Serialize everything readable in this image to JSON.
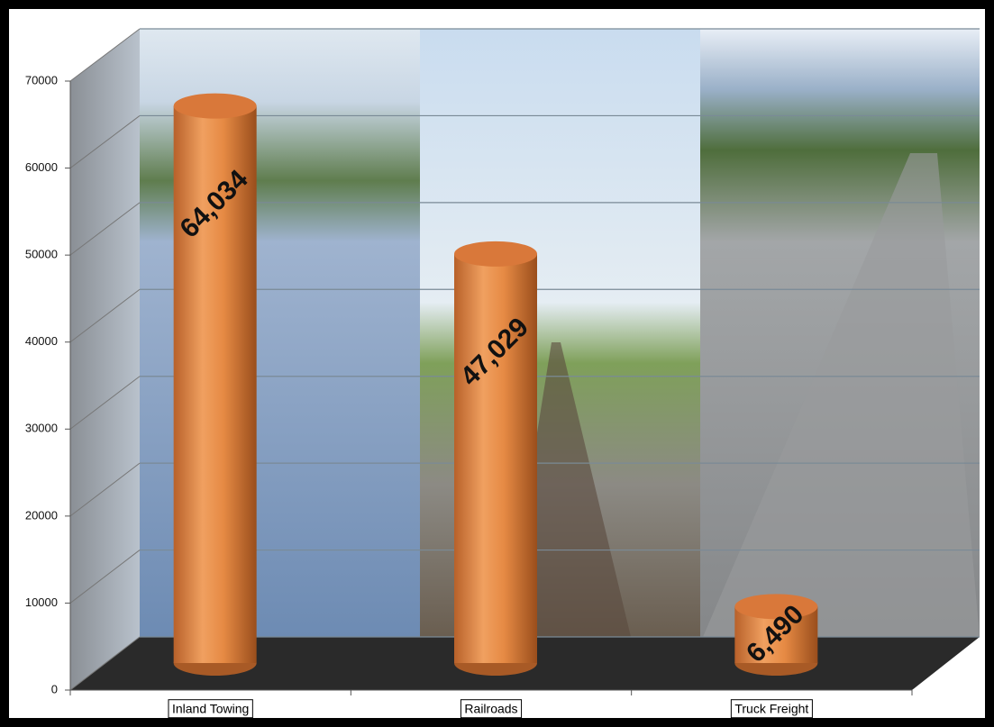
{
  "chart_data": {
    "type": "bar",
    "categories": [
      "Inland Towing",
      "Railroads",
      "Truck Freight"
    ],
    "values": [
      64034,
      47029,
      6490
    ],
    "value_labels": [
      "64,034",
      "47,029",
      "6,490"
    ],
    "color": "#e68a44",
    "ylim": [
      0,
      70000
    ],
    "yticks": [
      0,
      10000,
      20000,
      30000,
      40000,
      50000,
      60000,
      70000
    ],
    "grid": true
  }
}
